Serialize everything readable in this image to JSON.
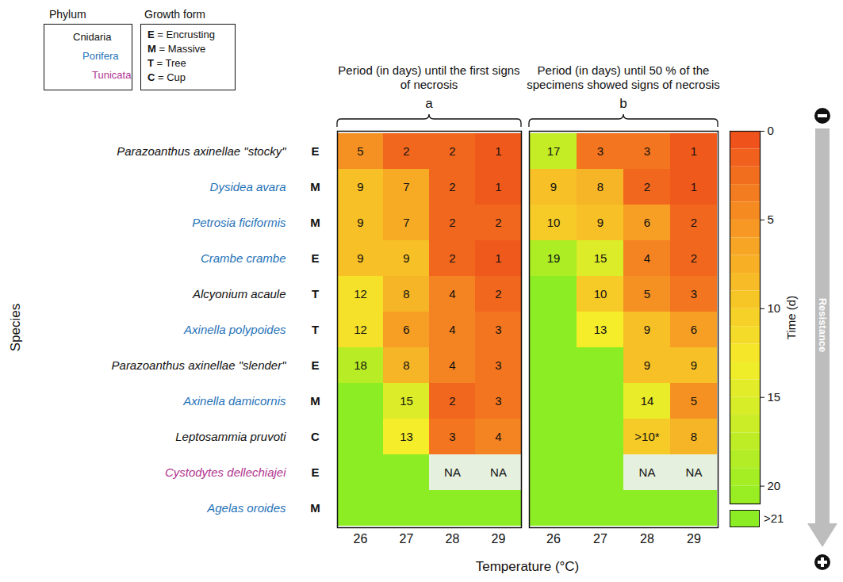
{
  "chart_data": {
    "type": "heatmap",
    "xlabel": "Temperature (°C)",
    "ylabel": "Species",
    "x": [
      26,
      27,
      28,
      29
    ],
    "categories": [
      "Parazoanthus axinellae \"stocky\"",
      "Dysidea avara",
      "Petrosia ficiformis",
      "Crambe crambe",
      "Alcyonium acaule",
      "Axinella polypoides",
      "Parazoanthus axinellae \"slender\"",
      "Axinella damicornis",
      "Leptosammia pruvoti",
      "Cystodytes dellechiajei",
      "Agelas oroides"
    ],
    "growth_forms": [
      "E",
      "M",
      "M",
      "E",
      "T",
      "T",
      "E",
      "M",
      "C",
      "E",
      "M"
    ],
    "phyla": [
      "Cnidaria",
      "Porifera",
      "Porifera",
      "Porifera",
      "Cnidaria",
      "Porifera",
      "Cnidaria",
      "Porifera",
      "Cnidaria",
      "Tunicata",
      "Porifera"
    ],
    "phylum_legend": {
      "title": "Phylum",
      "entries": [
        {
          "name": "Cnidaria",
          "color": "#111111"
        },
        {
          "name": "Porifera",
          "color": "#1f72b8"
        },
        {
          "name": "Tunicata",
          "color": "#b2348f"
        }
      ]
    },
    "growth_form_legend": {
      "title": "Growth form",
      "entries": [
        "E = Encrusting",
        "M = Massive",
        "T = Tree",
        "C = Cup"
      ]
    },
    "panels": [
      {
        "letter": "a",
        "title": "Period (in days) until the first signs of necrosis",
        "cells": [
          [
            5,
            2,
            2,
            1
          ],
          [
            9,
            7,
            2,
            1
          ],
          [
            9,
            7,
            2,
            2
          ],
          [
            9,
            9,
            2,
            1
          ],
          [
            12,
            8,
            4,
            2
          ],
          [
            12,
            6,
            4,
            3
          ],
          [
            18,
            8,
            4,
            3
          ],
          [
            null,
            15,
            2,
            3
          ],
          [
            null,
            13,
            3,
            4
          ],
          [
            null,
            null,
            "NA",
            "NA"
          ],
          [
            null,
            null,
            null,
            null
          ]
        ]
      },
      {
        "letter": "b",
        "title": "Period (in days) until 50 % of the specimens showed signs of necrosis",
        "cells": [
          [
            17,
            3,
            3,
            1
          ],
          [
            9,
            8,
            2,
            1
          ],
          [
            10,
            9,
            6,
            2
          ],
          [
            19,
            15,
            4,
            2
          ],
          [
            null,
            10,
            5,
            3
          ],
          [
            null,
            13,
            9,
            6
          ],
          [
            null,
            null,
            9,
            9
          ],
          [
            null,
            null,
            14,
            5
          ],
          [
            null,
            null,
            {
              "value": 10,
              "label": ">10*"
            },
            8
          ],
          [
            null,
            null,
            "NA",
            "NA"
          ],
          [
            null,
            null,
            null,
            null
          ]
        ]
      }
    ],
    "colorbar": {
      "label": "Time (d)",
      "range": [
        0,
        21
      ],
      "ticks": [
        0,
        5,
        10,
        15,
        20
      ],
      "over_label": ">21"
    },
    "resistance_label": "Resistance"
  }
}
